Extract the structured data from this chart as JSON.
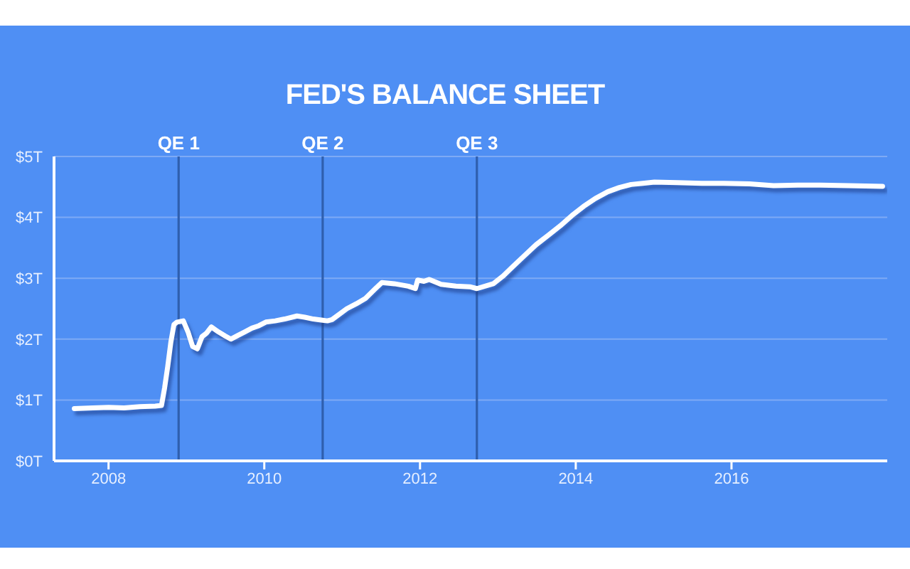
{
  "chart_data": {
    "type": "line",
    "title": "FED'S BALANCE SHEET",
    "x": [
      2007.56,
      2007.8,
      2008.0,
      2008.2,
      2008.4,
      2008.6,
      2008.68,
      2008.72,
      2008.76,
      2008.8,
      2008.84,
      2008.88,
      2008.96,
      2009.02,
      2009.08,
      2009.14,
      2009.2,
      2009.26,
      2009.32,
      2009.41,
      2009.5,
      2009.57,
      2009.66,
      2009.75,
      2009.84,
      2009.93,
      2010.02,
      2010.14,
      2010.26,
      2010.42,
      2010.52,
      2010.63,
      2010.75,
      2010.81,
      2010.87,
      2011.06,
      2011.18,
      2011.3,
      2011.42,
      2011.51,
      2011.67,
      2011.85,
      2011.94,
      2011.97,
      2012.05,
      2012.12,
      2012.27,
      2012.46,
      2012.64,
      2012.73,
      2012.94,
      2013.07,
      2013.19,
      2013.34,
      2013.49,
      2013.65,
      2013.8,
      2013.95,
      2014.1,
      2014.25,
      2014.41,
      2014.56,
      2014.71,
      2014.86,
      2015.01,
      2015.3,
      2015.62,
      2015.9,
      2016.23,
      2016.54,
      2016.85,
      2017.14,
      2017.5,
      2017.94
    ],
    "values": [
      0.86,
      0.87,
      0.88,
      0.87,
      0.89,
      0.9,
      0.91,
      1.2,
      1.55,
      1.95,
      2.24,
      2.28,
      2.3,
      2.12,
      1.88,
      1.84,
      2.04,
      2.1,
      2.2,
      2.12,
      2.05,
      2.0,
      2.06,
      2.12,
      2.18,
      2.22,
      2.28,
      2.3,
      2.33,
      2.38,
      2.36,
      2.33,
      2.31,
      2.3,
      2.32,
      2.5,
      2.58,
      2.67,
      2.82,
      2.93,
      2.91,
      2.87,
      2.83,
      2.97,
      2.95,
      2.98,
      2.9,
      2.87,
      2.86,
      2.83,
      2.91,
      3.04,
      3.19,
      3.37,
      3.55,
      3.71,
      3.86,
      4.03,
      4.18,
      4.31,
      4.42,
      4.49,
      4.54,
      4.56,
      4.58,
      4.57,
      4.56,
      4.56,
      4.55,
      4.52,
      4.53,
      4.53,
      4.52,
      4.51
    ],
    "color": "#ffffff",
    "marker": "none",
    "line_style": "solid",
    "grid": "y",
    "xlim": [
      2007.3,
      2018
    ],
    "xticks": [
      2008,
      2010,
      2012,
      2014,
      2016
    ],
    "ylim": [
      0,
      5
    ],
    "yticks": [
      {
        "value": 0,
        "label": "$0T"
      },
      {
        "value": 1,
        "label": "$1T"
      },
      {
        "value": 2,
        "label": "$2T"
      },
      {
        "value": 3,
        "label": "$3T"
      },
      {
        "value": 4,
        "label": "$4T"
      },
      {
        "value": 5,
        "label": "$5T"
      }
    ],
    "ref_lines": [
      {
        "axis": "x",
        "value": 2008.9,
        "label": "QE 1",
        "color": "#2f5fae"
      },
      {
        "axis": "x",
        "value": 2010.75,
        "label": "QE 2",
        "color": "#2f5fae"
      },
      {
        "axis": "x",
        "value": 2012.73,
        "label": "QE 3",
        "color": "#2f5fae"
      }
    ]
  }
}
